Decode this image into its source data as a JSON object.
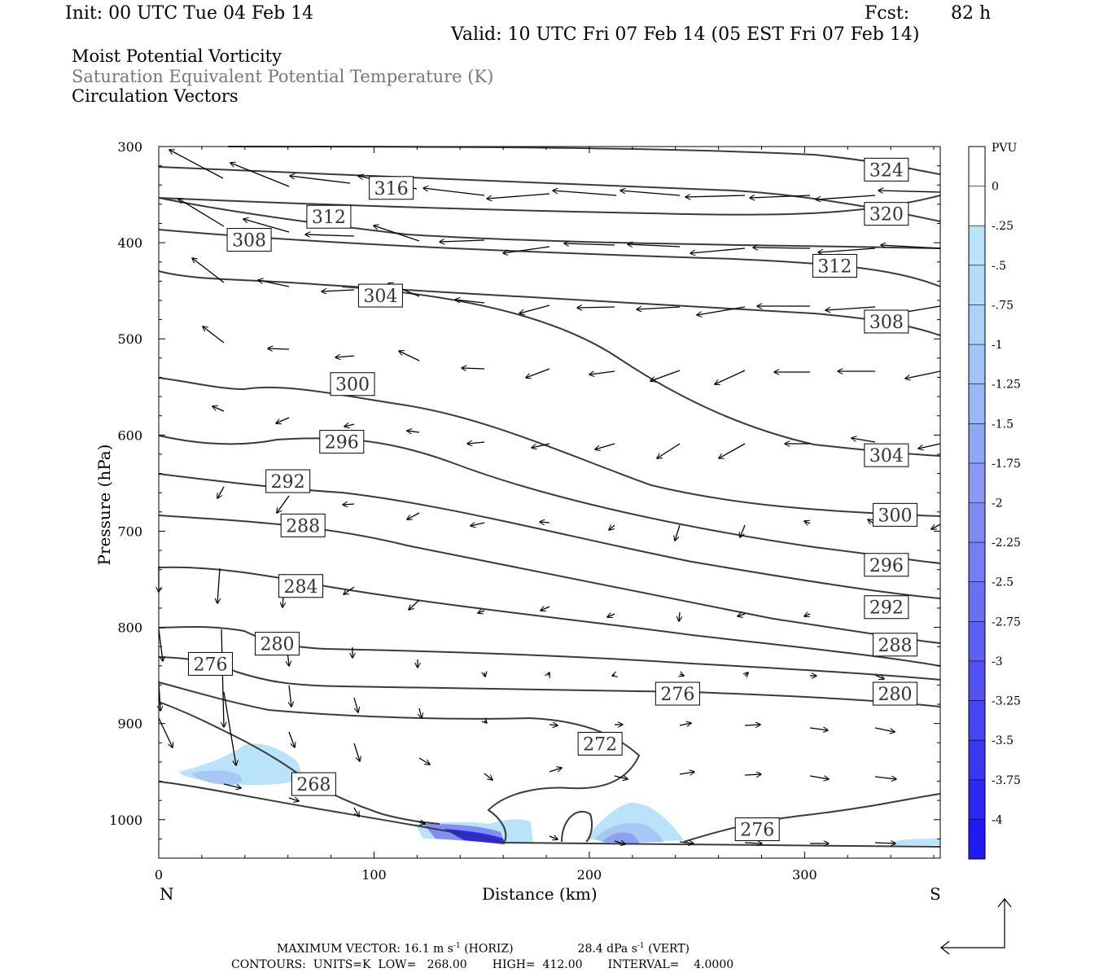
{
  "header": {
    "init": "Init: 00 UTC Tue 04 Feb 14",
    "fcst_label": "Fcst:",
    "fcst_value": "82 h",
    "valid": "Valid: 10 UTC Fri 07 Feb 14 (05 EST Fri 07 Feb 14)"
  },
  "titles": {
    "line1": "Moist Potential Vorticity",
    "line2": "Saturation Equivalent Potential Temperature (K)",
    "line3": "Circulation Vectors"
  },
  "colors": {
    "contour": "#3a3a3a",
    "mpv_light": "#b9e3f9",
    "mpv_mid": "#8fb2f2",
    "mpv_dark": "#2020f0",
    "label_box": "#000000"
  },
  "chart_data": {
    "type": "cross-section",
    "xlabel": "Distance (km)",
    "ylabel": "Pressure (hPa)",
    "x_left_label": "N",
    "x_right_label": "S",
    "xlim": [
      0,
      363
    ],
    "ylim": [
      300,
      1040
    ],
    "y_scale": "linear-inverted",
    "x_ticks": [
      0,
      100,
      200,
      300
    ],
    "y_ticks": [
      300,
      400,
      500,
      600,
      700,
      800,
      900,
      1000
    ],
    "contour_labels": [
      {
        "v": "324",
        "x": 338,
        "p": 324
      },
      {
        "v": "320",
        "x": 338,
        "p": 370
      },
      {
        "v": "316",
        "x": 108,
        "p": 343
      },
      {
        "v": "312",
        "x": 79,
        "p": 373
      },
      {
        "v": "308",
        "x": 42,
        "p": 397
      },
      {
        "v": "312",
        "x": 314,
        "p": 424
      },
      {
        "v": "304",
        "x": 103,
        "p": 455
      },
      {
        "v": "308",
        "x": 338,
        "p": 482
      },
      {
        "v": "300",
        "x": 90,
        "p": 547
      },
      {
        "v": "296",
        "x": 85,
        "p": 607
      },
      {
        "v": "304",
        "x": 338,
        "p": 621
      },
      {
        "v": "292",
        "x": 60,
        "p": 648
      },
      {
        "v": "300",
        "x": 342,
        "p": 683
      },
      {
        "v": "288",
        "x": 67,
        "p": 694
      },
      {
        "v": "296",
        "x": 338,
        "p": 735
      },
      {
        "v": "284",
        "x": 66,
        "p": 757
      },
      {
        "v": "292",
        "x": 338,
        "p": 779
      },
      {
        "v": "280",
        "x": 55,
        "p": 817
      },
      {
        "v": "288",
        "x": 342,
        "p": 818
      },
      {
        "v": "276",
        "x": 24,
        "p": 838
      },
      {
        "v": "276",
        "x": 241,
        "p": 869
      },
      {
        "v": "280",
        "x": 342,
        "p": 869
      },
      {
        "v": "272",
        "x": 205,
        "p": 921
      },
      {
        "v": "268",
        "x": 72,
        "p": 963
      },
      {
        "v": "276",
        "x": 278,
        "p": 1010
      }
    ],
    "colorbar": {
      "title": "PVU",
      "labels": [
        "0",
        "-.25",
        "-.5",
        "-.75",
        "-1",
        "-1.25",
        "-1.5",
        "-1.75",
        "-2",
        "-2.25",
        "-2.5",
        "-2.75",
        "-3",
        "-3.25",
        "-3.5",
        "-3.75",
        "-4"
      ]
    }
  },
  "footer": {
    "line1_a": "MAXIMUM VECTOR:  16.1 m s",
    "line1_b": "(HORIZ)",
    "line1_c": "28.4 dPa s",
    "line1_d": "(VERT)",
    "line2": "CONTOURS:  UNITS=K  LOW=   268.00       HIGH=  412.00       INTERVAL=    4.0000"
  }
}
